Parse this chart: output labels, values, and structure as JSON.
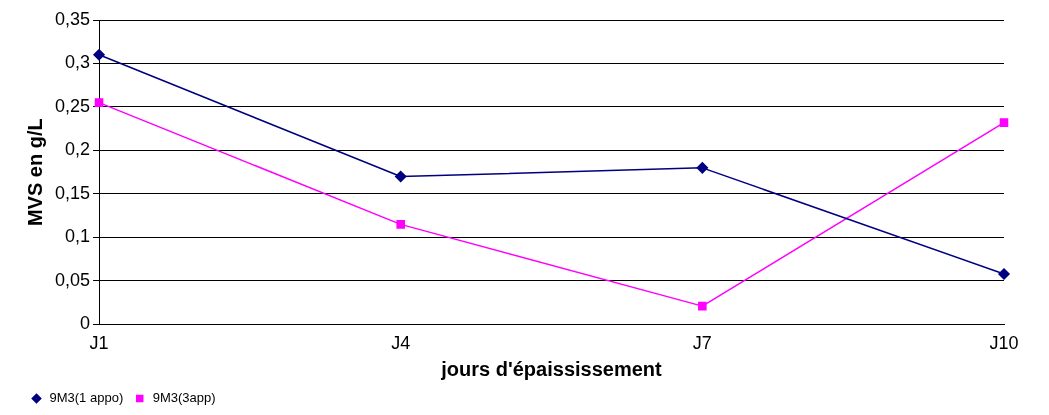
{
  "chart_data": {
    "type": "line",
    "xlabel": "jours d'épaississement",
    "ylabel": "MVS en g/L",
    "categories": [
      "J1",
      "J4",
      "J7",
      "J10"
    ],
    "series": [
      {
        "name": "9M3(1 appo)",
        "color": "#000080",
        "marker": "diamond",
        "values": [
          0.31,
          0.17,
          0.18,
          0.058
        ]
      },
      {
        "name": "9M3(3app)",
        "color": "#ff00ff",
        "marker": "square",
        "values": [
          0.255,
          0.115,
          0.021,
          0.232
        ]
      }
    ],
    "ylim": [
      0,
      0.35
    ],
    "yticks": [
      {
        "value": 0,
        "label": "0"
      },
      {
        "value": 0.05,
        "label": "0,05"
      },
      {
        "value": 0.1,
        "label": "0,1"
      },
      {
        "value": 0.15,
        "label": "0,15"
      },
      {
        "value": 0.2,
        "label": "0,2"
      },
      {
        "value": 0.25,
        "label": "0,25"
      },
      {
        "value": 0.3,
        "label": "0,3"
      },
      {
        "value": 0.35,
        "label": "0,35"
      }
    ],
    "grid": "y",
    "legend": "bottom left",
    "line_style": "solid"
  }
}
